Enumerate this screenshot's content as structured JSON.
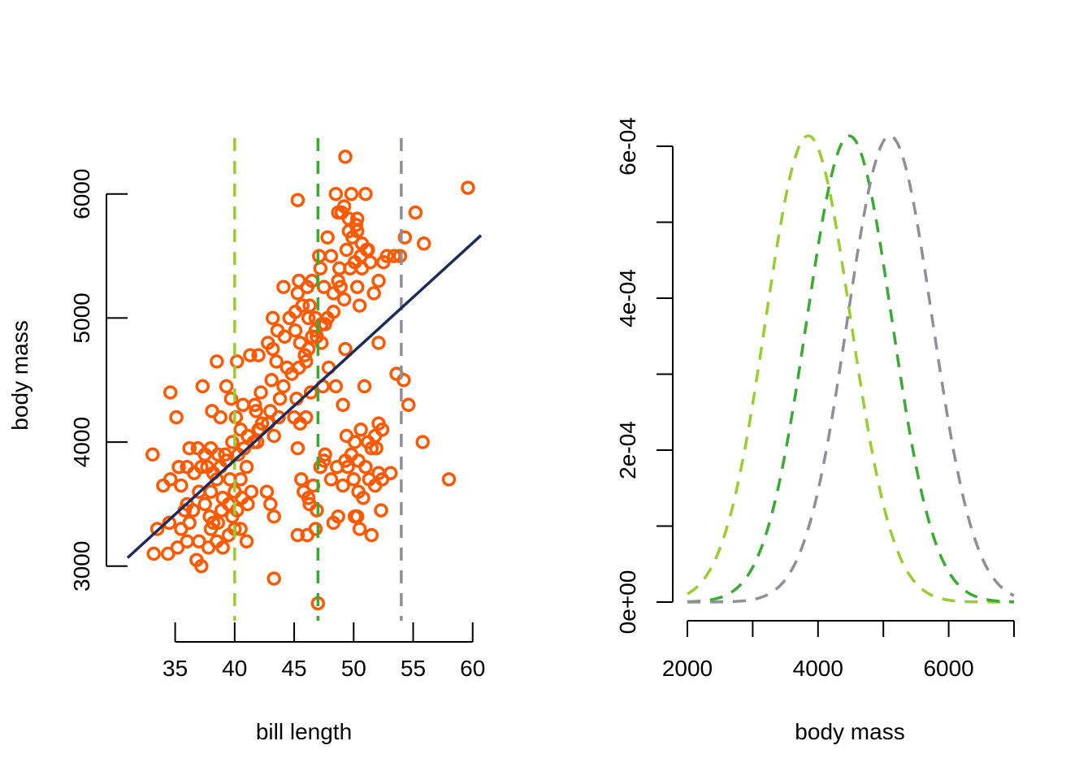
{
  "chart_data": [
    {
      "type": "scatter",
      "title": "",
      "xlabel": "bill length",
      "ylabel": "body mass",
      "xlim": [
        31,
        60.7
      ],
      "ylim": [
        2560,
        6450
      ],
      "x_ticks": [
        35,
        40,
        45,
        50,
        55,
        60
      ],
      "y_ticks": [
        3000,
        4000,
        5000,
        6000
      ],
      "x_tick_labels": [
        "35",
        "40",
        "45",
        "50",
        "55",
        "60"
      ],
      "y_tick_labels": [
        "3000",
        "4000",
        "5000",
        "6000"
      ],
      "grid": false,
      "colors": {
        "points": "#ff5a00",
        "fit": "#1c2b5a",
        "vline_1": "#9acd32",
        "vline_2": "#3aaa35",
        "vline_3": "#8f8f99"
      },
      "fit_line": {
        "intercept": 355,
        "slope": 87.5
      },
      "vertical_lines": [
        40,
        47,
        54
      ],
      "points": [
        [
          33.1,
          3900
        ],
        [
          33.2,
          3100
        ],
        [
          34.4,
          3100
        ],
        [
          35.2,
          3150
        ],
        [
          36.8,
          3050
        ],
        [
          37,
          3200
        ],
        [
          37.2,
          3000
        ],
        [
          38,
          3300
        ],
        [
          38.5,
          3200
        ],
        [
          39,
          3150
        ],
        [
          39.5,
          3250
        ],
        [
          40,
          3300
        ],
        [
          40.5,
          3300
        ],
        [
          41,
          3200
        ],
        [
          36,
          3200
        ],
        [
          37.8,
          3150
        ],
        [
          34.5,
          3350
        ],
        [
          35.5,
          3300
        ],
        [
          38.2,
          3350
        ],
        [
          34.6,
          3700
        ],
        [
          35.5,
          3650
        ],
        [
          36,
          3500
        ],
        [
          36.5,
          3450
        ],
        [
          37,
          3600
        ],
        [
          37.5,
          3500
        ],
        [
          38,
          3600
        ],
        [
          38.5,
          3700
        ],
        [
          39,
          3550
        ],
        [
          39.5,
          3500
        ],
        [
          40,
          3600
        ],
        [
          40.6,
          3550
        ],
        [
          41.1,
          3500
        ],
        [
          35.3,
          3800
        ],
        [
          36,
          3800
        ],
        [
          36.6,
          3750
        ],
        [
          37.2,
          3800
        ],
        [
          37.7,
          3800
        ],
        [
          38.2,
          3750
        ],
        [
          38.8,
          3800
        ],
        [
          39.3,
          3850
        ],
        [
          39.6,
          3700
        ],
        [
          40.5,
          3700
        ],
        [
          41,
          3800
        ],
        [
          34,
          3650
        ],
        [
          33.5,
          3300
        ],
        [
          35.8,
          3450
        ],
        [
          37.9,
          3400
        ],
        [
          38.6,
          3350
        ],
        [
          39.8,
          3400
        ],
        [
          40.2,
          3450
        ],
        [
          41.4,
          3600
        ],
        [
          36.2,
          3350
        ],
        [
          38.9,
          3450
        ],
        [
          36.9,
          3950
        ],
        [
          37.5,
          3900
        ],
        [
          38,
          3950
        ],
        [
          38.6,
          3900
        ],
        [
          39.2,
          3900
        ],
        [
          39.8,
          4000
        ],
        [
          40.3,
          3900
        ],
        [
          40.8,
          3950
        ],
        [
          41.1,
          4050
        ],
        [
          41.6,
          4000
        ],
        [
          42,
          4100
        ],
        [
          42.3,
          4150
        ],
        [
          41.8,
          4250
        ],
        [
          40.7,
          4300
        ],
        [
          40.1,
          4200
        ],
        [
          39.7,
          4350
        ],
        [
          38.8,
          4200
        ],
        [
          38.1,
          4250
        ],
        [
          37.3,
          4450
        ],
        [
          39.3,
          4450
        ],
        [
          40.5,
          4100
        ],
        [
          41.9,
          4000
        ],
        [
          36.2,
          3950
        ],
        [
          34.6,
          4400
        ],
        [
          35.1,
          4200
        ],
        [
          38.5,
          4650
        ],
        [
          40.2,
          4650
        ],
        [
          41.3,
          4700
        ],
        [
          42,
          4700
        ],
        [
          42.8,
          4800
        ],
        [
          43.2,
          4750
        ],
        [
          43.5,
          4650
        ],
        [
          43.1,
          4500
        ],
        [
          42.2,
          4400
        ],
        [
          41.7,
          4300
        ],
        [
          43,
          4250
        ],
        [
          43.8,
          4350
        ],
        [
          44.1,
          4450
        ],
        [
          44.4,
          4600
        ],
        [
          44.2,
          4850
        ],
        [
          45.1,
          4900
        ],
        [
          45.5,
          4800
        ],
        [
          45.9,
          4700
        ],
        [
          46.2,
          4750
        ],
        [
          46.5,
          4850
        ],
        [
          46.8,
          4900
        ],
        [
          47.3,
          4800
        ],
        [
          47.6,
          4950
        ],
        [
          46,
          4650
        ],
        [
          45.4,
          4600
        ],
        [
          44.8,
          4550
        ],
        [
          45,
          4200
        ],
        [
          45.5,
          4150
        ],
        [
          46,
          4200
        ],
        [
          46.4,
          4400
        ],
        [
          47.4,
          4450
        ],
        [
          45.2,
          4350
        ],
        [
          43.7,
          4200
        ],
        [
          43.3,
          4050
        ],
        [
          42.8,
          4150
        ],
        [
          42.1,
          4100
        ],
        [
          44.6,
          5000
        ],
        [
          45.1,
          5050
        ],
        [
          45.7,
          5100
        ],
        [
          46.2,
          5000
        ],
        [
          46.8,
          5000
        ],
        [
          47.3,
          4950
        ],
        [
          47.8,
          5000
        ],
        [
          44.1,
          5250
        ],
        [
          45.4,
          5300
        ],
        [
          46.1,
          5250
        ],
        [
          46.5,
          5300
        ],
        [
          47.5,
          5250
        ],
        [
          48.3,
          5200
        ],
        [
          48.7,
          5300
        ],
        [
          49.2,
          5150
        ],
        [
          49.7,
          5400
        ],
        [
          50.1,
          5450
        ],
        [
          50.6,
          5500
        ],
        [
          51.1,
          5550
        ],
        [
          51.4,
          5450
        ],
        [
          52.1,
          5300
        ],
        [
          52.5,
          5450
        ],
        [
          52.8,
          5500
        ],
        [
          53.4,
          5500
        ],
        [
          48.1,
          5500
        ],
        [
          48.8,
          5400
        ],
        [
          49.4,
          5550
        ],
        [
          49.9,
          5650
        ],
        [
          50.3,
          5700
        ],
        [
          50.7,
          5600
        ],
        [
          51.2,
          5550
        ],
        [
          49.6,
          5800
        ],
        [
          50.3,
          5800
        ],
        [
          48.7,
          5850
        ],
        [
          49.2,
          5900
        ],
        [
          49.8,
          6000
        ],
        [
          48.5,
          6000
        ],
        [
          51,
          6000
        ],
        [
          49,
          5850
        ],
        [
          47.1,
          5500
        ],
        [
          47.8,
          5650
        ],
        [
          50.2,
          5750
        ],
        [
          49.6,
          5700
        ],
        [
          43.2,
          5000
        ],
        [
          43.6,
          4900
        ],
        [
          45.3,
          5200
        ],
        [
          46.3,
          5100
        ],
        [
          48.3,
          5050
        ],
        [
          50.3,
          5250
        ],
        [
          50.7,
          5400
        ],
        [
          51.7,
          5200
        ],
        [
          55.2,
          5850
        ],
        [
          54.3,
          5650
        ],
        [
          55.9,
          5600
        ],
        [
          53.9,
          5500
        ],
        [
          45.3,
          5950
        ],
        [
          49.3,
          6300
        ],
        [
          59.6,
          6050
        ],
        [
          47.2,
          5400
        ],
        [
          48.9,
          5250
        ],
        [
          50.5,
          5100
        ],
        [
          46.9,
          4850
        ],
        [
          52.1,
          4800
        ],
        [
          49.3,
          4750
        ],
        [
          47.9,
          4600
        ],
        [
          48.5,
          4450
        ],
        [
          49.1,
          4300
        ],
        [
          50.9,
          4450
        ],
        [
          54.2,
          4500
        ],
        [
          53.6,
          4550
        ],
        [
          54.6,
          4300
        ],
        [
          45.6,
          3700
        ],
        [
          46.2,
          3550
        ],
        [
          46.6,
          3650
        ],
        [
          47.2,
          3800
        ],
        [
          47.6,
          3900
        ],
        [
          48.1,
          3700
        ],
        [
          48.6,
          3800
        ],
        [
          49.1,
          3650
        ],
        [
          49.5,
          3800
        ],
        [
          50,
          3700
        ],
        [
          50.4,
          3600
        ],
        [
          50.8,
          3550
        ],
        [
          51.3,
          3700
        ],
        [
          51.8,
          3650
        ],
        [
          52.1,
          3750
        ],
        [
          52.4,
          3700
        ],
        [
          53.1,
          3750
        ],
        [
          49.3,
          3850
        ],
        [
          49.8,
          3900
        ],
        [
          50.4,
          3850
        ],
        [
          51,
          3800
        ],
        [
          49.4,
          4050
        ],
        [
          50.1,
          4000
        ],
        [
          50.6,
          4100
        ],
        [
          51.2,
          4000
        ],
        [
          51.5,
          3950
        ],
        [
          51.8,
          4050
        ],
        [
          52.1,
          4150
        ],
        [
          52.4,
          4100
        ],
        [
          51.9,
          3950
        ],
        [
          45.8,
          3600
        ],
        [
          46.3,
          3500
        ],
        [
          45.3,
          3250
        ],
        [
          46.1,
          3250
        ],
        [
          46.8,
          3300
        ],
        [
          48.3,
          3350
        ],
        [
          48.7,
          3400
        ],
        [
          50.1,
          3400
        ],
        [
          50.5,
          3300
        ],
        [
          51.5,
          3250
        ],
        [
          50.3,
          3400
        ],
        [
          52.3,
          3450
        ],
        [
          45.3,
          3950
        ],
        [
          47.5,
          3850
        ],
        [
          46.9,
          3450
        ],
        [
          43,
          3500
        ],
        [
          43.3,
          3400
        ],
        [
          43.3,
          2900
        ],
        [
          47,
          2700
        ],
        [
          42.7,
          3600
        ],
        [
          55.8,
          4000
        ],
        [
          58,
          3700
        ]
      ]
    },
    {
      "type": "line",
      "title": "",
      "xlabel": "body mass",
      "ylabel": "",
      "xlim": [
        1812,
        7000
      ],
      "ylim": [
        -2.35e-05,
        0.00066
      ],
      "x_ticks": [
        2000,
        3000,
        4000,
        5000,
        6000,
        7000
      ],
      "x_tick_labels": [
        "2000",
        "",
        "4000",
        "",
        "6000",
        ""
      ],
      "y_ticks": [
        0,
        0.0001,
        0.0002,
        0.0003,
        0.0004,
        0.0005,
        0.0006
      ],
      "y_tick_labels": [
        "0e+00",
        "",
        "2e-04",
        "",
        "4e-04",
        "",
        "6e-04"
      ],
      "grid": false,
      "curve": "normal density",
      "series": [
        {
          "mean": 3850,
          "sd": 650,
          "color": "#9acd32"
        },
        {
          "mean": 4480,
          "sd": 650,
          "color": "#3aaa35"
        },
        {
          "mean": 5100,
          "sd": 650,
          "color": "#8f8f99"
        }
      ],
      "x_range": [
        2000,
        7000
      ]
    }
  ]
}
